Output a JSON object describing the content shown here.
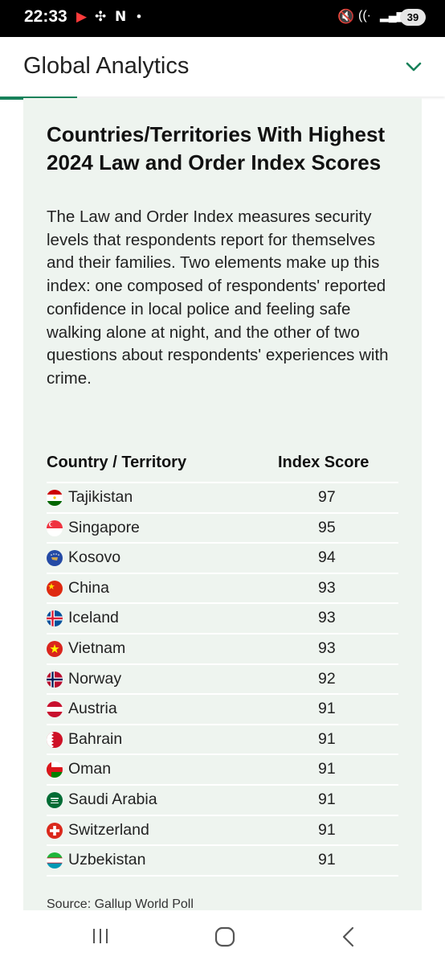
{
  "status_bar": {
    "time": "22:33",
    "battery": "39"
  },
  "header": {
    "title": "Global Analytics"
  },
  "card": {
    "title": "Countries/Territories With Highest 2024 Law and Order Index Scores",
    "description": "The Law and Order Index measures security levels that respondents report for themselves and their families. Two elements make up this index: one composed of respondents' reported confidence in local police and feeling safe walking alone at night, and the other of two questions about respondents' experiences with crime.",
    "table": {
      "headers": [
        "Country / Territory",
        "Index Score"
      ],
      "rows": [
        {
          "name": "Tajikistan",
          "score": "97"
        },
        {
          "name": "Singapore",
          "score": "95"
        },
        {
          "name": "Kosovo",
          "score": "94"
        },
        {
          "name": "China",
          "score": "93"
        },
        {
          "name": "Iceland",
          "score": "93"
        },
        {
          "name": "Vietnam",
          "score": "93"
        },
        {
          "name": "Norway",
          "score": "92"
        },
        {
          "name": "Austria",
          "score": "91"
        },
        {
          "name": "Bahrain",
          "score": "91"
        },
        {
          "name": "Oman",
          "score": "91"
        },
        {
          "name": "Saudi Arabia",
          "score": "91"
        },
        {
          "name": "Switzerland",
          "score": "91"
        },
        {
          "name": "Uzbekistan",
          "score": "91"
        }
      ]
    },
    "source": "Source: Gallup World Poll"
  },
  "colors": {
    "accent": "#18815a",
    "card_bg": "#eef4ef"
  }
}
